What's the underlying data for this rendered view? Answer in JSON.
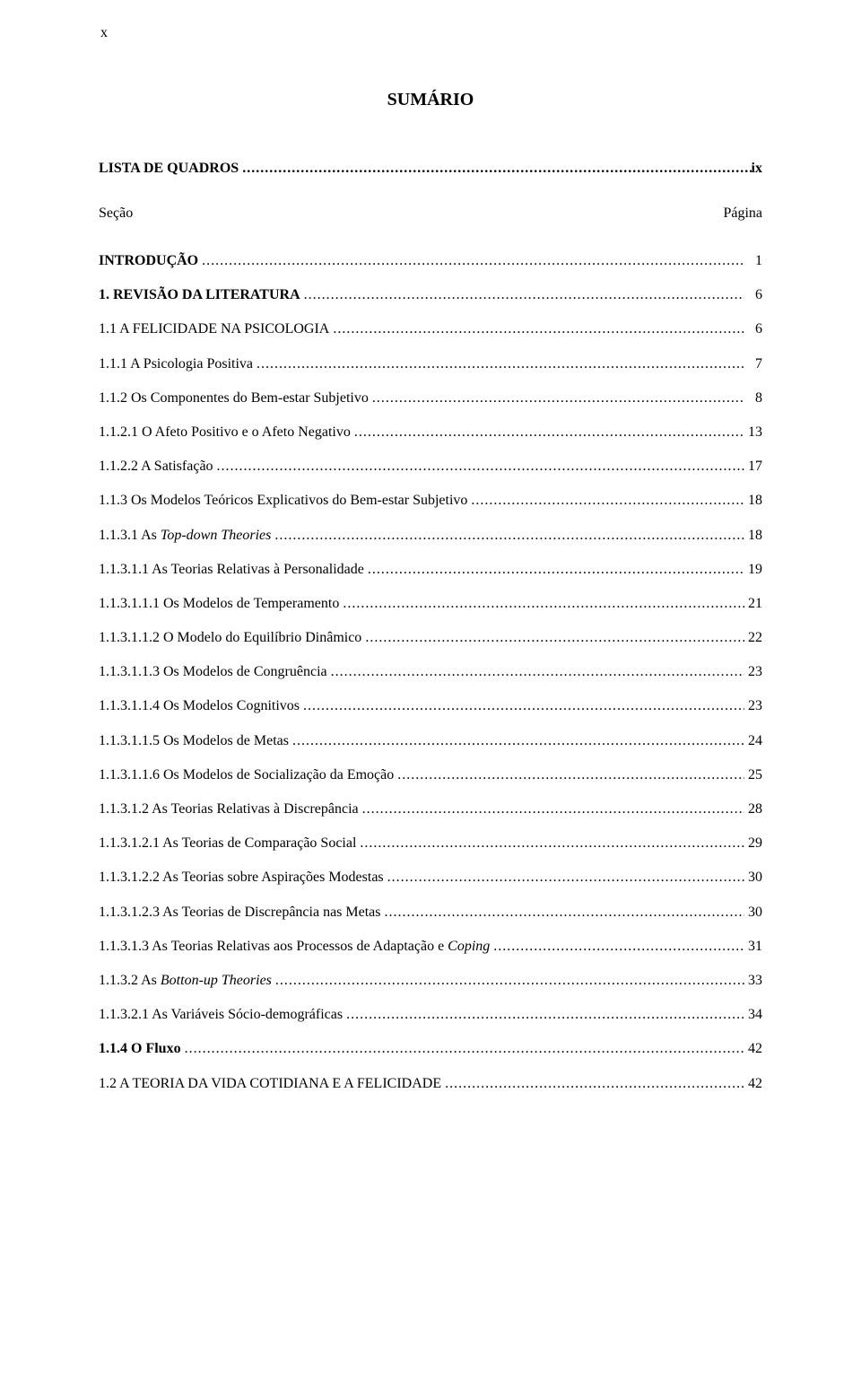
{
  "page_marker": "x",
  "title": "SUMÁRIO",
  "lista_quadros": {
    "label": "LISTA DE QUADROS",
    "page": "ix"
  },
  "sec_pag": {
    "left": "Seção",
    "right": "Página"
  },
  "dots": "...............................................................................................................................................................................................................",
  "toc": [
    {
      "num": "",
      "text": "INTRODUÇÃO",
      "page": "1",
      "bold": true,
      "italic": false
    },
    {
      "num": "1. ",
      "text": "REVISÃO DA LITERATURA",
      "page": "6",
      "bold": true,
      "italic": false
    },
    {
      "num": "1.1 ",
      "text": "A FELICIDADE NA PSICOLOGIA",
      "page": "6",
      "bold": false,
      "italic": false
    },
    {
      "num": "1.1.1 ",
      "text": "A Psicologia Positiva",
      "page": "7",
      "bold": false,
      "italic": false
    },
    {
      "num": "1.1.2 ",
      "text": "Os Componentes do Bem-estar Subjetivo",
      "page": "8",
      "bold": false,
      "italic": false
    },
    {
      "num": "1.1.2.1 ",
      "text": "O Afeto Positivo e o Afeto Negativo",
      "page": "13",
      "bold": false,
      "italic": false
    },
    {
      "num": "1.1.2.2 ",
      "text": "A Satisfação",
      "page": "17",
      "bold": false,
      "italic": false
    },
    {
      "num": "1.1.3 ",
      "text": "Os Modelos Teóricos Explicativos do Bem-estar Subjetivo",
      "page": "18",
      "bold": false,
      "italic": false
    },
    {
      "num": "1.1.3.1 ",
      "text": "As ",
      "italic_text": "Top-down Theories",
      "page": "18",
      "bold": false,
      "italic": true
    },
    {
      "num": "1.1.3.1.1 ",
      "text": "As Teorias Relativas à Personalidade",
      "page": "19",
      "bold": false,
      "italic": false
    },
    {
      "num": "1.1.3.1.1.1 ",
      "text": "Os Modelos de Temperamento",
      "page": "21",
      "bold": false,
      "italic": false
    },
    {
      "num": "1.1.3.1.1.2 ",
      "text": "O Modelo do Equilíbrio Dinâmico",
      "page": "22",
      "bold": false,
      "italic": false
    },
    {
      "num": "1.1.3.1.1.3 ",
      "text": "Os Modelos de Congruência",
      "page": "23",
      "bold": false,
      "italic": false
    },
    {
      "num": "1.1.3.1.1.4 ",
      "text": "Os Modelos Cognitivos",
      "page": "23",
      "bold": false,
      "italic": false
    },
    {
      "num": "1.1.3.1.1.5 ",
      "text": "Os Modelos de Metas",
      "page": "24",
      "bold": false,
      "italic": false
    },
    {
      "num": "1.1.3.1.1.6 ",
      "text": "Os Modelos de Socialização da Emoção",
      "page": "25",
      "bold": false,
      "italic": false
    },
    {
      "num": "1.1.3.1.2 ",
      "text": "As Teorias Relativas à Discrepância",
      "page": "28",
      "bold": false,
      "italic": false
    },
    {
      "num": "1.1.3.1.2.1 ",
      "text": "As Teorias de Comparação Social",
      "page": "29",
      "bold": false,
      "italic": false
    },
    {
      "num": "1.1.3.1.2.2 ",
      "text": "As Teorias sobre Aspirações Modestas",
      "page": "30",
      "bold": false,
      "italic": false
    },
    {
      "num": "1.1.3.1.2.3 ",
      "text": "As Teorias de Discrepância nas Metas",
      "page": "30",
      "bold": false,
      "italic": false
    },
    {
      "num": "1.1.3.1.3 ",
      "text": "As Teorias Relativas aos Processos de Adaptação e ",
      "italic_text": "Coping",
      "page": "31",
      "bold": false,
      "italic": true
    },
    {
      "num": "1.1.3.2 ",
      "text": "As ",
      "italic_text": "Botton-up Theories",
      "page": "33",
      "bold": false,
      "italic": true
    },
    {
      "num": "1.1.3.2.1 ",
      "text": "As Variáveis Sócio-demográficas",
      "page": "34",
      "bold": false,
      "italic": false
    },
    {
      "num": "1.1.4 ",
      "text": "O Fluxo",
      "page": "42",
      "bold": true,
      "italic": false
    },
    {
      "num": "1.2 ",
      "text": "A TEORIA DA VIDA COTIDIANA E A FELICIDADE",
      "page": "42",
      "bold": false,
      "italic": false
    }
  ]
}
